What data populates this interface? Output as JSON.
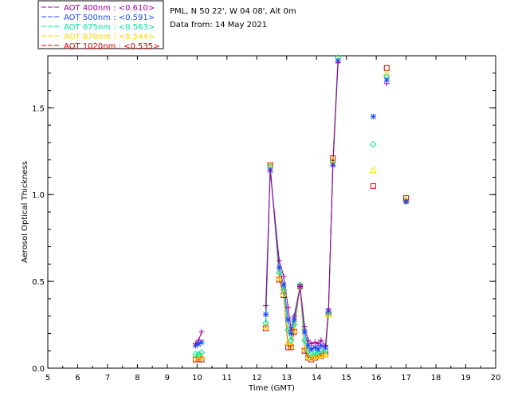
{
  "header": {
    "station": "PML, N 50 22', W 04 08', Alt 0m",
    "date": "Data from: 14 May 2021"
  },
  "chart_data": {
    "type": "line",
    "xlabel": "Time (GMT)",
    "ylabel": "Aerosol Optical Thickness",
    "xlim": [
      5,
      20
    ],
    "ylim": [
      0,
      1.8
    ],
    "xticks": [
      "5",
      "6",
      "7",
      "8",
      "9",
      "10",
      "11",
      "12",
      "13",
      "14",
      "15",
      "16",
      "17",
      "18",
      "19",
      "20"
    ],
    "yticks": [
      "0.0",
      "0.5",
      "1.0",
      "1.5"
    ],
    "legend": [
      {
        "label": "AOT  400nm : <0.610>",
        "color": "#9b009b"
      },
      {
        "label": "AOT  500nm : <0.591>",
        "color": "#1c4fff"
      },
      {
        "label": "AOT  675nm : <0.563>",
        "color": "#00e3a0"
      },
      {
        "label": "AOT  870nm : <0.544>",
        "color": "#ffd400"
      },
      {
        "label": "AOT 1020nm : <0.535>",
        "color": "#e00000"
      }
    ],
    "series": [
      {
        "name": "AOT 400nm",
        "marker": "plus",
        "color": "#9b009b",
        "line_segments": [
          [
            [
              9.95,
              0.14
            ],
            [
              10.05,
              0.16
            ],
            [
              10.15,
              0.21
            ]
          ],
          [
            [
              12.3,
              0.36
            ],
            [
              12.45,
              1.14
            ],
            [
              12.75,
              0.62
            ],
            [
              12.9,
              0.53
            ],
            [
              13.05,
              0.35
            ],
            [
              13.15,
              0.22
            ],
            [
              13.25,
              0.3
            ],
            [
              13.45,
              0.47
            ],
            [
              13.6,
              0.24
            ],
            [
              13.72,
              0.16
            ],
            [
              13.82,
              0.14
            ],
            [
              13.95,
              0.15
            ],
            [
              14.05,
              0.14
            ],
            [
              14.15,
              0.16
            ],
            [
              14.3,
              0.13
            ],
            [
              14.4,
              0.34
            ],
            [
              14.55,
              1.17
            ],
            [
              14.72,
              1.76
            ]
          ]
        ],
        "points": [
          [
            16.35,
            1.64
          ],
          [
            17.0,
            0.96
          ]
        ]
      },
      {
        "name": "AOT 500nm",
        "marker": "asterisk",
        "color": "#1c4fff",
        "line_segments": [
          [
            [
              9.95,
              0.13
            ],
            [
              10.05,
              0.14
            ],
            [
              10.15,
              0.15
            ]
          ],
          [
            [
              12.3,
              0.31
            ],
            [
              12.45,
              1.14
            ],
            [
              12.75,
              0.58
            ],
            [
              12.9,
              0.48
            ],
            [
              13.05,
              0.28
            ],
            [
              13.15,
              0.2
            ],
            [
              13.25,
              0.28
            ],
            [
              13.45,
              0.47
            ],
            [
              13.6,
              0.21
            ],
            [
              13.72,
              0.13
            ],
            [
              13.82,
              0.11
            ],
            [
              13.95,
              0.12
            ],
            [
              14.05,
              0.11
            ],
            [
              14.15,
              0.13
            ],
            [
              14.3,
              0.12
            ],
            [
              14.4,
              0.33
            ],
            [
              14.55,
              1.17
            ],
            [
              14.72,
              1.77
            ]
          ]
        ],
        "points": [
          [
            15.9,
            1.45
          ],
          [
            16.35,
            1.66
          ],
          [
            17.0,
            0.96
          ]
        ]
      },
      {
        "name": "AOT 675nm",
        "marker": "diamond",
        "color": "#00e3a0",
        "line_segments": [
          [
            [
              9.95,
              0.08
            ],
            [
              10.05,
              0.08
            ],
            [
              10.15,
              0.09
            ]
          ],
          [
            [
              12.3,
              0.26
            ],
            [
              12.45,
              1.16
            ],
            [
              12.75,
              0.55
            ],
            [
              12.9,
              0.45
            ],
            [
              13.05,
              0.22
            ],
            [
              13.15,
              0.16
            ],
            [
              13.25,
              0.25
            ],
            [
              13.45,
              0.48
            ],
            [
              13.6,
              0.16
            ],
            [
              13.72,
              0.1
            ],
            [
              13.82,
              0.08
            ],
            [
              13.95,
              0.09
            ],
            [
              14.05,
              0.09
            ],
            [
              14.15,
              0.1
            ],
            [
              14.3,
              0.1
            ],
            [
              14.4,
              0.32
            ],
            [
              14.55,
              1.19
            ],
            [
              14.72,
              1.79
            ]
          ]
        ],
        "points": [
          [
            15.9,
            1.29
          ],
          [
            16.35,
            1.68
          ],
          [
            17.0,
            0.96
          ]
        ]
      },
      {
        "name": "AOT 870nm",
        "marker": "triangle",
        "color": "#ffd400",
        "line_segments": [
          [
            [
              9.95,
              0.06
            ],
            [
              10.05,
              0.06
            ],
            [
              10.15,
              0.07
            ]
          ],
          [
            [
              12.3,
              0.24
            ],
            [
              12.45,
              1.17
            ],
            [
              12.75,
              0.52
            ],
            [
              12.9,
              0.43
            ],
            [
              13.05,
              0.15
            ],
            [
              13.15,
              0.13
            ],
            [
              13.25,
              0.22
            ],
            [
              13.45,
              0.47
            ],
            [
              13.6,
              0.11
            ],
            [
              13.72,
              0.07
            ],
            [
              13.82,
              0.06
            ],
            [
              13.95,
              0.07
            ],
            [
              14.05,
              0.07
            ],
            [
              14.15,
              0.08
            ],
            [
              14.3,
              0.08
            ],
            [
              14.4,
              0.31
            ],
            [
              14.55,
              1.2
            ],
            [
              14.72,
              1.81
            ]
          ]
        ],
        "points": [
          [
            15.9,
            1.14
          ],
          [
            16.35,
            1.7
          ],
          [
            17.0,
            0.97
          ]
        ]
      },
      {
        "name": "AOT 1020nm",
        "marker": "square",
        "color": "#e00000",
        "line_segments": [
          [
            [
              9.95,
              0.05
            ],
            [
              10.05,
              0.05
            ],
            [
              10.15,
              0.05
            ]
          ],
          [
            [
              12.3,
              0.23
            ],
            [
              12.45,
              1.17
            ],
            [
              12.75,
              0.51
            ],
            [
              12.9,
              0.42
            ],
            [
              13.05,
              0.12
            ],
            [
              13.15,
              0.12
            ],
            [
              13.25,
              0.21
            ],
            [
              13.45,
              0.47
            ],
            [
              13.6,
              0.1
            ],
            [
              13.72,
              0.06
            ],
            [
              13.82,
              0.05
            ],
            [
              13.95,
              0.06
            ],
            [
              14.05,
              0.07
            ],
            [
              14.15,
              0.07
            ],
            [
              14.3,
              0.08
            ],
            [
              14.4,
              0.31
            ],
            [
              14.55,
              1.21
            ],
            [
              14.72,
              1.82
            ]
          ]
        ],
        "points": [
          [
            15.9,
            1.05
          ],
          [
            16.35,
            1.73
          ],
          [
            17.0,
            0.98
          ]
        ]
      }
    ]
  }
}
